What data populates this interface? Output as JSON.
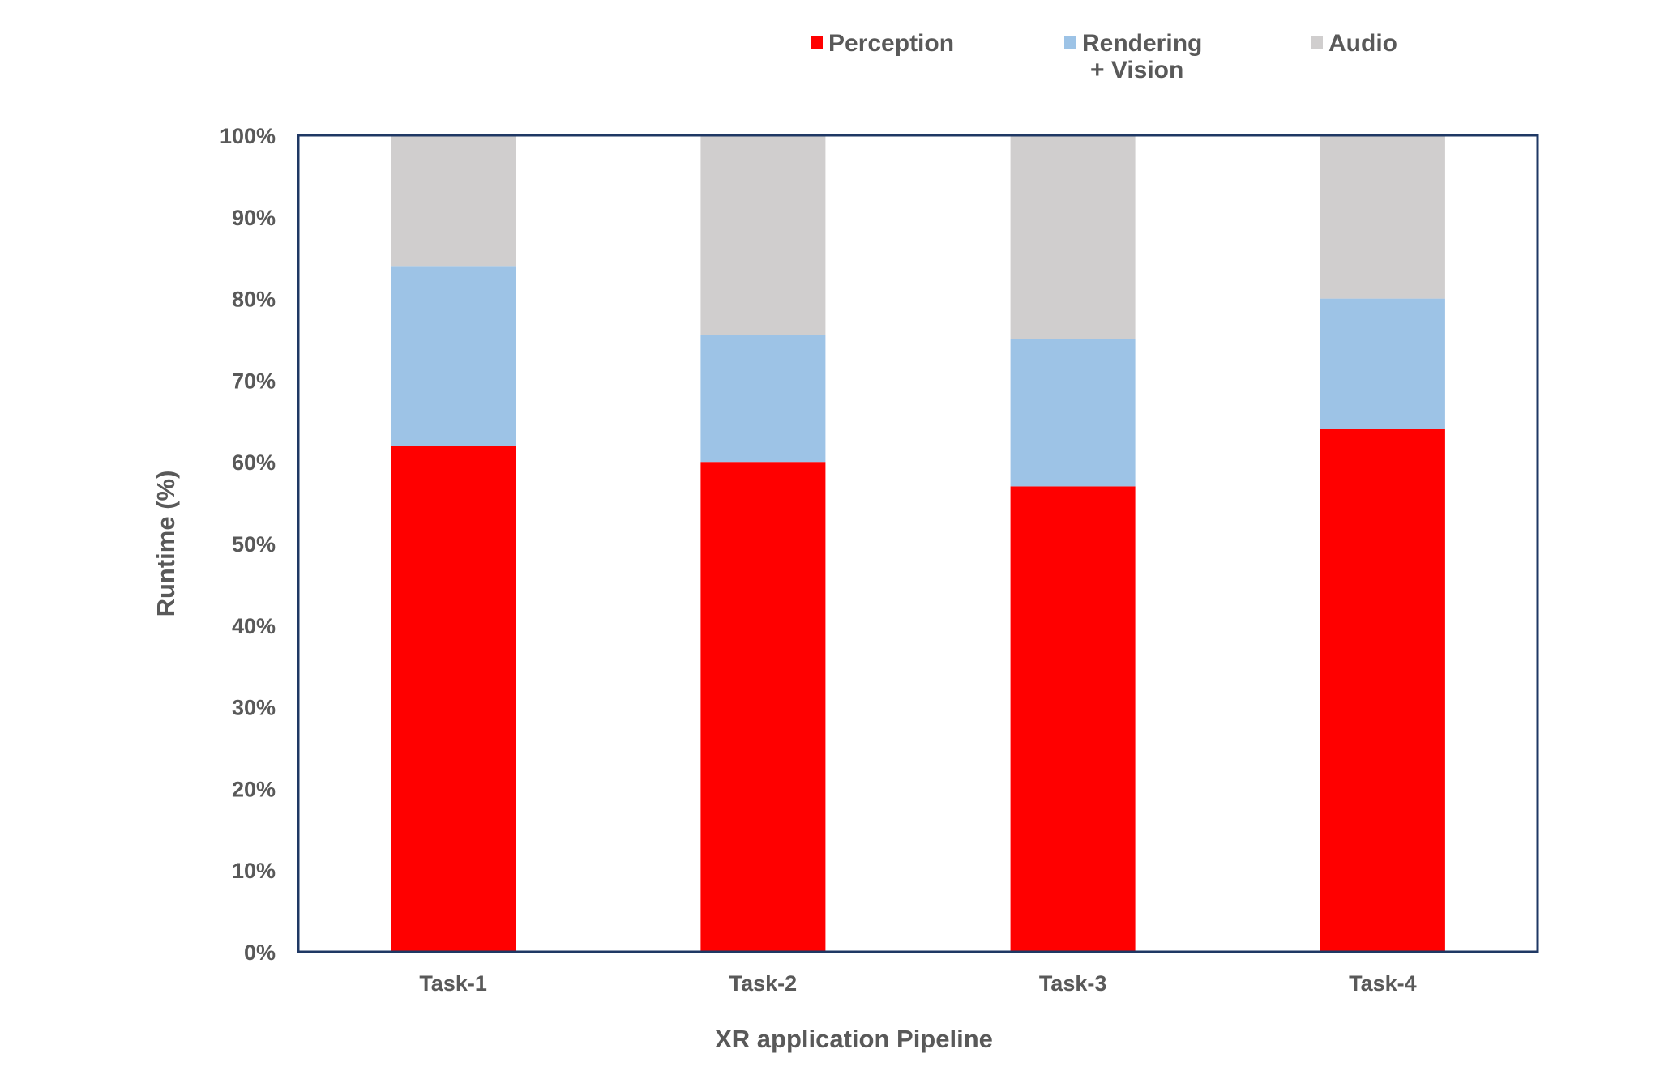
{
  "chart_data": {
    "type": "bar",
    "stacked": true,
    "categories": [
      "Task-1",
      "Task-2",
      "Task-3",
      "Task-4"
    ],
    "series": [
      {
        "name": "Perception",
        "color": "#ff0000",
        "values": [
          62,
          60,
          57,
          64
        ]
      },
      {
        "name": "Rendering + Vision",
        "legend_lines": [
          "Rendering",
          "+ Vision"
        ],
        "color": "#9dc3e6",
        "values": [
          22,
          15.5,
          18,
          16
        ]
      },
      {
        "name": "Audio",
        "color": "#d0cece",
        "values": [
          16,
          24.5,
          25,
          20
        ]
      }
    ],
    "title": "",
    "xlabel": "XR application Pipeline",
    "ylabel": "Runtime (%)",
    "ylim": [
      0,
      100
    ],
    "yticks": [
      "0%",
      "10%",
      "20%",
      "30%",
      "40%",
      "50%",
      "60%",
      "70%",
      "80%",
      "90%",
      "100%"
    ],
    "grid": false,
    "legend_position": "top",
    "plot_border_color": "#1f3864"
  }
}
